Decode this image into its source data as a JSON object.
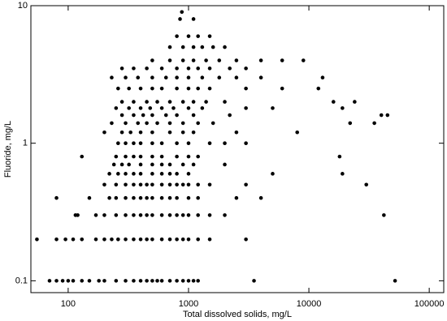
{
  "chart_data": {
    "type": "scatter",
    "x_label": "Total dissolved solids, mg/L",
    "y_label": "Fluoride, mg/L",
    "xlog": true,
    "ylog": true,
    "xlim": [
      49,
      132000
    ],
    "ylim": [
      0.082,
      10
    ],
    "xticks": [
      100,
      1000,
      10000,
      100000
    ],
    "yticks": [
      0.1,
      1,
      10
    ],
    "series": [
      {
        "color": "#000000",
        "x": [
          70,
          80,
          90,
          100,
          110,
          130,
          150,
          180,
          200,
          250,
          300,
          350,
          400,
          450,
          500,
          550,
          600,
          700,
          800,
          900,
          1000,
          1100,
          1200,
          3500,
          52000,
          55,
          80,
          95,
          110,
          130,
          170,
          200,
          230,
          260,
          300,
          350,
          400,
          450,
          500,
          600,
          700,
          800,
          900,
          1000,
          1200,
          1500,
          3000,
          115,
          120,
          170,
          200,
          250,
          300,
          350,
          400,
          450,
          500,
          600,
          700,
          800,
          900,
          1000,
          1200,
          1500,
          2000,
          42000,
          80,
          150,
          220,
          250,
          300,
          350,
          400,
          450,
          500,
          600,
          700,
          800,
          1000,
          1200,
          2500,
          4000,
          200,
          250,
          300,
          350,
          400,
          450,
          500,
          600,
          700,
          800,
          900,
          1000,
          1200,
          1500,
          3000,
          30000,
          220,
          260,
          300,
          350,
          400,
          500,
          600,
          700,
          800,
          1000,
          5000,
          19000,
          240,
          280,
          320,
          400,
          500,
          600,
          700,
          900,
          1100,
          2000,
          130,
          250,
          300,
          350,
          400,
          500,
          600,
          800,
          1000,
          1200,
          18000,
          260,
          300,
          350,
          400,
          500,
          600,
          800,
          1000,
          1500,
          2000,
          3000,
          200,
          280,
          330,
          400,
          500,
          700,
          900,
          1100,
          2500,
          8000,
          230,
          300,
          380,
          450,
          550,
          700,
          900,
          1200,
          1600,
          22000,
          35000,
          280,
          350,
          420,
          500,
          650,
          800,
          1100,
          2200,
          40000,
          45000,
          250,
          320,
          400,
          480,
          600,
          750,
          1000,
          1300,
          3000,
          5000,
          19000,
          280,
          350,
          450,
          550,
          700,
          900,
          1100,
          1400,
          2000,
          16000,
          24000,
          260,
          320,
          400,
          500,
          600,
          800,
          1000,
          1200,
          1500,
          3000,
          6000,
          12000,
          230,
          300,
          380,
          500,
          650,
          800,
          1000,
          1300,
          1800,
          2500,
          4000,
          13000,
          280,
          350,
          450,
          600,
          800,
          1000,
          1200,
          1500,
          2200,
          3000,
          500,
          700,
          900,
          1100,
          1400,
          1800,
          2500,
          4000,
          6000,
          9000,
          700,
          900,
          1100,
          1300,
          1600,
          2000,
          800,
          1000,
          1200,
          1500,
          850,
          1100,
          880
        ],
        "values": [
          0.1,
          0.1,
          0.1,
          0.1,
          0.1,
          0.1,
          0.1,
          0.1,
          0.1,
          0.1,
          0.1,
          0.1,
          0.1,
          0.1,
          0.1,
          0.1,
          0.1,
          0.1,
          0.1,
          0.1,
          0.1,
          0.1,
          0.1,
          0.1,
          0.1,
          0.2,
          0.2,
          0.2,
          0.2,
          0.2,
          0.2,
          0.2,
          0.2,
          0.2,
          0.2,
          0.2,
          0.2,
          0.2,
          0.2,
          0.2,
          0.2,
          0.2,
          0.2,
          0.2,
          0.2,
          0.2,
          0.2,
          0.3,
          0.3,
          0.3,
          0.3,
          0.3,
          0.3,
          0.3,
          0.3,
          0.3,
          0.3,
          0.3,
          0.3,
          0.3,
          0.3,
          0.3,
          0.3,
          0.3,
          0.3,
          0.3,
          0.4,
          0.4,
          0.4,
          0.4,
          0.4,
          0.4,
          0.4,
          0.4,
          0.4,
          0.4,
          0.4,
          0.4,
          0.4,
          0.4,
          0.4,
          0.4,
          0.5,
          0.5,
          0.5,
          0.5,
          0.5,
          0.5,
          0.5,
          0.5,
          0.5,
          0.5,
          0.5,
          0.5,
          0.5,
          0.5,
          0.5,
          0.5,
          0.6,
          0.6,
          0.6,
          0.6,
          0.6,
          0.6,
          0.6,
          0.6,
          0.6,
          0.6,
          0.6,
          0.6,
          0.7,
          0.7,
          0.7,
          0.7,
          0.7,
          0.7,
          0.7,
          0.7,
          0.7,
          0.7,
          0.8,
          0.8,
          0.8,
          0.8,
          0.8,
          0.8,
          0.8,
          0.8,
          0.8,
          0.8,
          0.8,
          1.0,
          1.0,
          1.0,
          1.0,
          1.0,
          1.0,
          1.0,
          1.0,
          1.0,
          1.0,
          1.0,
          1.2,
          1.2,
          1.2,
          1.2,
          1.2,
          1.2,
          1.2,
          1.2,
          1.2,
          1.2,
          1.4,
          1.4,
          1.4,
          1.4,
          1.4,
          1.4,
          1.4,
          1.4,
          1.4,
          1.4,
          1.4,
          1.6,
          1.6,
          1.6,
          1.6,
          1.6,
          1.6,
          1.6,
          1.6,
          1.6,
          1.6,
          1.8,
          1.8,
          1.8,
          1.8,
          1.8,
          1.8,
          1.8,
          1.8,
          1.8,
          1.8,
          1.8,
          2.0,
          2.0,
          2.0,
          2.0,
          2.0,
          2.0,
          2.0,
          2.0,
          2.0,
          2.0,
          2.0,
          2.5,
          2.5,
          2.5,
          2.5,
          2.5,
          2.5,
          2.5,
          2.5,
          2.5,
          2.5,
          2.5,
          2.5,
          3.0,
          3.0,
          3.0,
          3.0,
          3.0,
          3.0,
          3.0,
          3.0,
          3.0,
          3.0,
          3.0,
          3.0,
          3.5,
          3.5,
          3.5,
          3.5,
          3.5,
          3.5,
          3.5,
          3.5,
          3.5,
          3.5,
          4.0,
          4.0,
          4.0,
          4.0,
          4.0,
          4.0,
          4.0,
          4.0,
          4.0,
          4.0,
          5.0,
          5.0,
          5.0,
          5.0,
          5.0,
          5.0,
          6.0,
          6.0,
          6.0,
          6.0,
          8.0,
          8.0,
          9.0
        ]
      }
    ]
  }
}
